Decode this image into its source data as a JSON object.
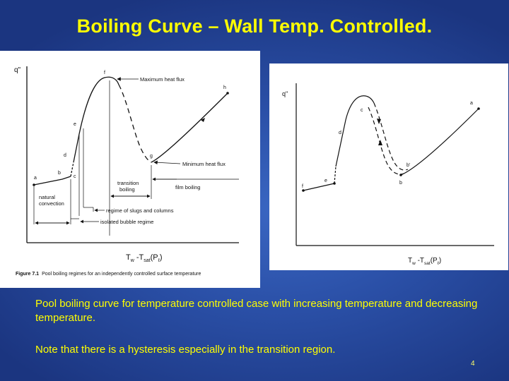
{
  "slide": {
    "title": "Boiling Curve – Wall Temp. Controlled.",
    "captions": [
      "Pool boiling curve for temperature controlled case with increasing temperature and decreasing temperature.",
      "Note that there is a hysteresis especially in the transition region."
    ],
    "page_number": "4",
    "colors": {
      "background": "#2a4fa6",
      "text_accent": "#ffff00",
      "figure_background": "#ffffff"
    }
  },
  "figure_left": {
    "y_axis_label": "q\"",
    "x_axis_label_main": "T",
    "x_axis_label_sub1": "w",
    "x_axis_label_mid": " -T",
    "x_axis_label_sub2": "sat",
    "x_axis_label_tail": "(P",
    "x_axis_label_sub3": "ℓ",
    "x_axis_label_end": ")",
    "points": {
      "a": "a",
      "b": "b",
      "c": "c",
      "d": "d",
      "e": "e",
      "f": "f",
      "g": "g",
      "h": "h"
    },
    "annotations": {
      "max_heat_flux": "Maximum heat flux",
      "min_heat_flux": "Minimum heat flux",
      "transition_line1": "transition",
      "transition_line2": "boiling",
      "film_boiling": "film boiling",
      "natural_line1": "natural",
      "natural_line2": "convection",
      "slugs_columns": "regime of slugs and columns",
      "isolated_bubble": "isolated bubble regime"
    },
    "caption_label": "Figure 7.1",
    "caption_text": "Pool boiling regimes for an independently controlled surface temperature"
  },
  "figure_right": {
    "y_axis_label": "q\"",
    "x_axis_label_main": "T",
    "x_axis_label_sub1": "w",
    "x_axis_label_mid": " -T",
    "x_axis_label_sub2": "sat",
    "x_axis_label_tail": "(P",
    "x_axis_label_sub3": "ℓ",
    "x_axis_label_end": ")",
    "points": {
      "a": "a",
      "b": "b",
      "b_prime": "b'",
      "c": "c",
      "d": "d",
      "e": "e",
      "f": "f"
    }
  }
}
